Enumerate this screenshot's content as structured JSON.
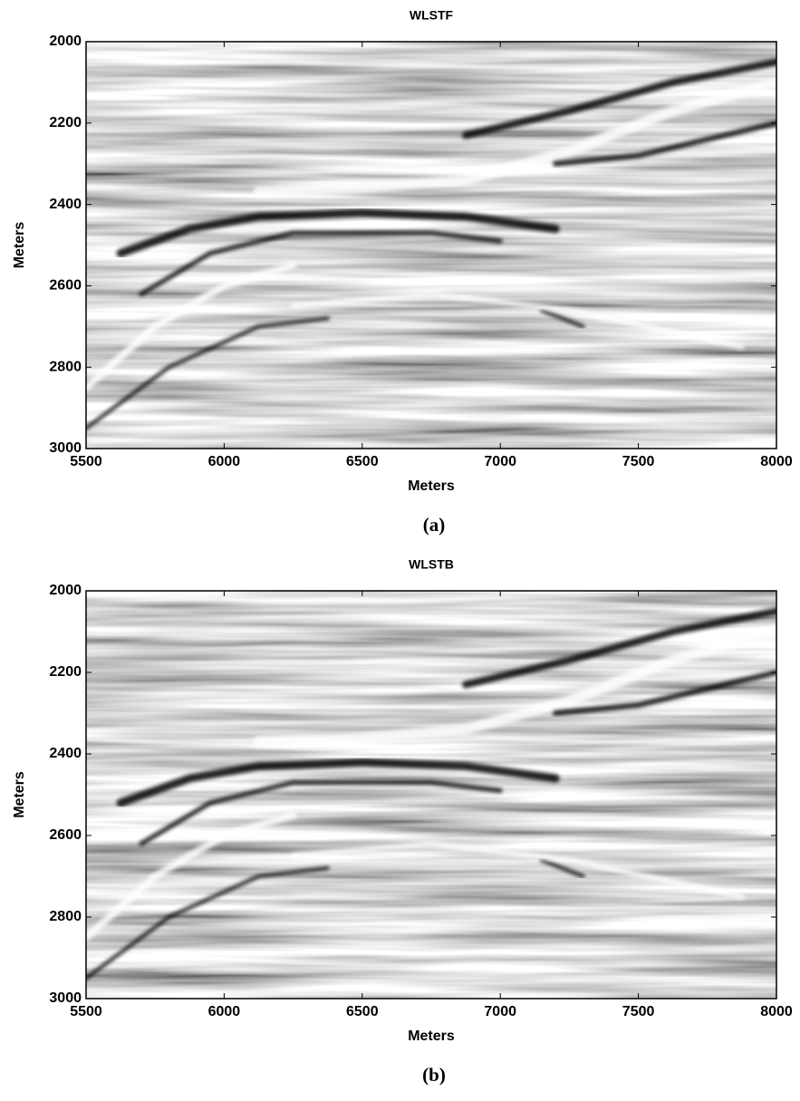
{
  "chart_data": [
    {
      "type": "image",
      "title": "WLSTF",
      "xlabel": "Meters",
      "ylabel": "Meters",
      "caption": "(a)",
      "xlim": [
        5500,
        8000
      ],
      "xticks": [
        5500,
        6000,
        6500,
        7000,
        7500,
        8000
      ],
      "ylim": [
        2000,
        3000
      ],
      "yticks": [
        2000,
        2200,
        2400,
        2600,
        2800,
        3000
      ],
      "y_inverted": true,
      "colormap": "gray"
    },
    {
      "type": "image",
      "title": "WLSTB",
      "xlabel": "Meters",
      "ylabel": "Meters",
      "caption": "(b)",
      "xlim": [
        5500,
        8000
      ],
      "xticks": [
        5500,
        6000,
        6500,
        7000,
        7500,
        8000
      ],
      "ylim": [
        2000,
        3000
      ],
      "yticks": [
        2000,
        2200,
        2400,
        2600,
        2800,
        3000
      ],
      "y_inverted": true,
      "colormap": "gray"
    }
  ]
}
